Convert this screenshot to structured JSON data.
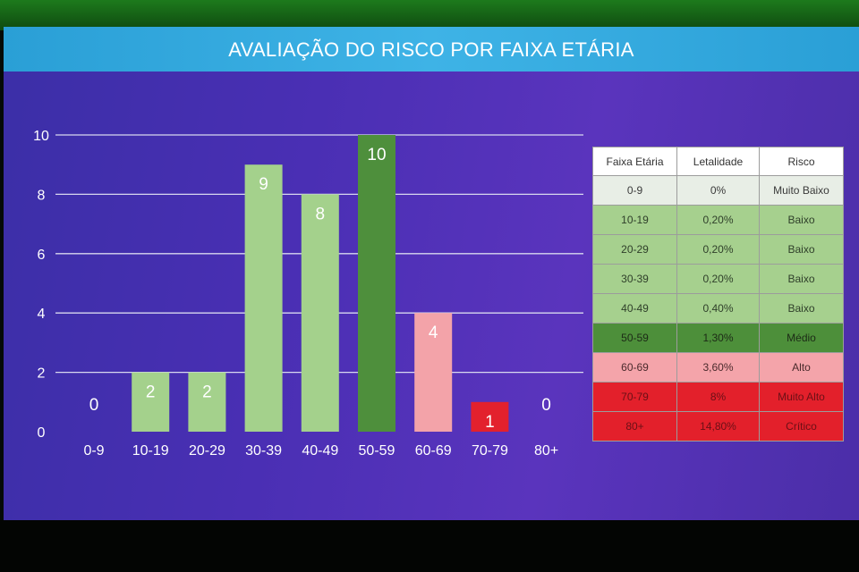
{
  "title": "AVALIAÇÃO DO RISCO POR FAIXA ETÁRIA",
  "colors": {
    "light_green": "#a4d18c",
    "dark_green": "#4e8f3c",
    "pink": "#f3a3a9",
    "red": "#e3212d",
    "gridline": "#d8d8ef",
    "text": "#ffffff"
  },
  "chart_data": {
    "type": "bar",
    "title": "AVALIAÇÃO DO RISCO POR FAIXA ETÁRIA",
    "categories": [
      "0-9",
      "10-19",
      "20-29",
      "30-39",
      "40-49",
      "50-59",
      "60-69",
      "70-79",
      "80+"
    ],
    "values": [
      0,
      2,
      2,
      9,
      8,
      10,
      4,
      1,
      0
    ],
    "bar_colors": [
      "light_green",
      "light_green",
      "light_green",
      "light_green",
      "light_green",
      "dark_green",
      "pink",
      "red",
      "light_green"
    ],
    "yticks": [
      0,
      2,
      4,
      6,
      8,
      10
    ],
    "ylim": [
      0,
      10
    ],
    "xlabel": "",
    "ylabel": "",
    "grid": true,
    "data_labels": true
  },
  "table": {
    "headers": [
      "Faixa Etária",
      "Letalidade",
      "Risco"
    ],
    "rows": [
      {
        "faixa": "0-9",
        "letalidade": "0%",
        "risco": "Muito Baixo",
        "bg": "#e8eee6",
        "text": "#3a3a3a"
      },
      {
        "faixa": "10-19",
        "letalidade": "0,20%",
        "risco": "Baixo",
        "bg": "#a6d08e",
        "text": "#2f3f2a"
      },
      {
        "faixa": "20-29",
        "letalidade": "0,20%",
        "risco": "Baixo",
        "bg": "#a6d08e",
        "text": "#2f3f2a"
      },
      {
        "faixa": "30-39",
        "letalidade": "0,20%",
        "risco": "Baixo",
        "bg": "#a6d08e",
        "text": "#2f3f2a"
      },
      {
        "faixa": "40-49",
        "letalidade": "0,40%",
        "risco": "Baixo",
        "bg": "#a6d08e",
        "text": "#2f3f2a"
      },
      {
        "faixa": "50-59",
        "letalidade": "1,30%",
        "risco": "Médio",
        "bg": "#4d8f3a",
        "text": "#1c2a16"
      },
      {
        "faixa": "60-69",
        "letalidade": "3,60%",
        "risco": "Alto",
        "bg": "#f4a4aa",
        "text": "#4a2a2c"
      },
      {
        "faixa": "70-79",
        "letalidade": "8%",
        "risco": "Muito Alto",
        "bg": "#e3202b",
        "text": "#6a1016"
      },
      {
        "faixa": "80+",
        "letalidade": "14,80%",
        "risco": "Crítico",
        "bg": "#e3202b",
        "text": "#6a1016"
      }
    ]
  }
}
